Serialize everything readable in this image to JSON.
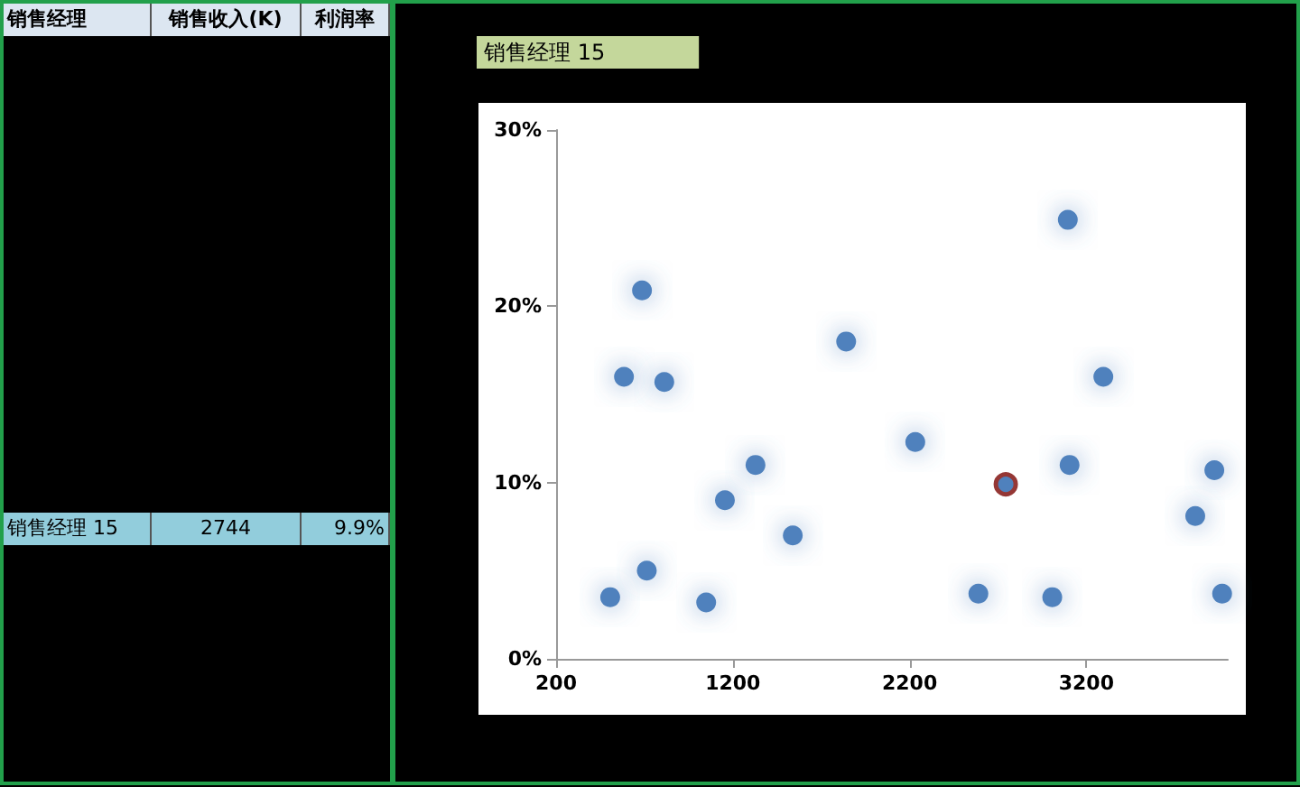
{
  "chart_data": [
    {
      "type": "other",
      "annotations": [
        "销售经理",
        "销售收入(K)",
        "利润率",
        "销售经理 15",
        "2744",
        "9.9%"
      ]
    },
    {
      "type": "scatter",
      "title": "销售经理 15",
      "xlim": [
        200,
        4000
      ],
      "xticks": [
        200,
        1200,
        2200,
        3200
      ],
      "ylim": [
        0,
        30
      ],
      "yticks": [
        {
          "value": 0,
          "label": "0%"
        },
        {
          "value": 10,
          "label": "10%"
        },
        {
          "value": 20,
          "label": "20%"
        },
        {
          "value": 30,
          "label": "30%"
        }
      ],
      "grid": false,
      "marker": "circle",
      "series": [
        {
          "color": "#4f81bd",
          "x": [
            506,
            584,
            686,
            713,
            812,
            1049,
            1155,
            1328,
            1539,
            1841,
            2232,
            2589,
            3007,
            3095,
            3105,
            3296,
            3816,
            3924,
            3968
          ],
          "values": [
            3.5,
            16.0,
            20.9,
            5.0,
            15.7,
            3.2,
            9.0,
            11.0,
            7.0,
            18.0,
            12.3,
            3.7,
            3.5,
            24.9,
            11.0,
            16.0,
            8.1,
            10.7,
            3.7
          ]
        },
        {
          "color": "#953735",
          "x": [
            2744
          ],
          "values": [
            9.9
          ]
        }
      ]
    }
  ]
}
